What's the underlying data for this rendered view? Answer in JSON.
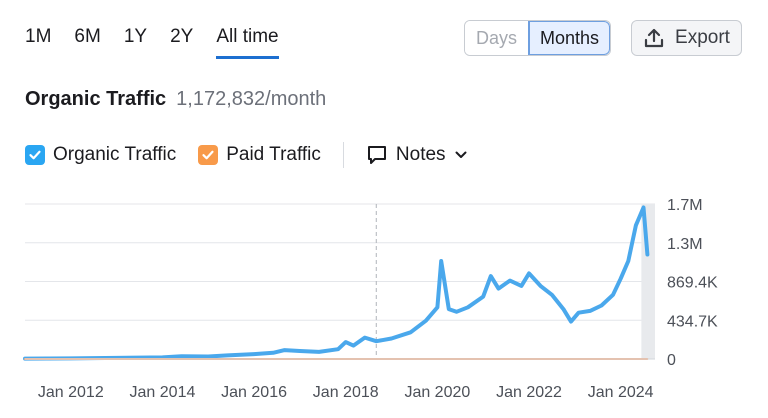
{
  "range_tabs": [
    {
      "label": "1M",
      "active": false
    },
    {
      "label": "6M",
      "active": false
    },
    {
      "label": "1Y",
      "active": false
    },
    {
      "label": "2Y",
      "active": false
    },
    {
      "label": "All time",
      "active": true
    }
  ],
  "granularity": {
    "days_label": "Days",
    "months_label": "Months",
    "selected": "Months"
  },
  "export_label": "Export",
  "header": {
    "title": "Organic Traffic",
    "subtitle": "1,172,832/month"
  },
  "legend": {
    "organic_label": "Organic Traffic",
    "organic_color": "#2aa6f2",
    "paid_label": "Paid Traffic",
    "paid_color": "#f89a4a",
    "notes_label": "Notes"
  },
  "chart_data": {
    "type": "line",
    "x_tick_labels": [
      "Jan 2012",
      "Jan 2014",
      "Jan 2016",
      "Jan 2018",
      "Jan 2020",
      "Jan 2022",
      "Jan 2024"
    ],
    "y_tick_labels": [
      "1.7M",
      "1.3M",
      "869.4K",
      "434.7K",
      "0"
    ],
    "ylim": [
      0,
      1739000
    ],
    "xlim": [
      "2011-01",
      "2024-10"
    ],
    "grid": true,
    "marker_date": "2018-09",
    "series": [
      {
        "name": "Organic Traffic",
        "color": "#4aa8ec",
        "points": [
          [
            "2011-01",
            5000
          ],
          [
            "2012-01",
            7000
          ],
          [
            "2013-01",
            12000
          ],
          [
            "2014-01",
            18000
          ],
          [
            "2014-06",
            30000
          ],
          [
            "2015-01",
            28000
          ],
          [
            "2015-06",
            40000
          ],
          [
            "2016-01",
            55000
          ],
          [
            "2016-06",
            70000
          ],
          [
            "2016-09",
            100000
          ],
          [
            "2017-01",
            90000
          ],
          [
            "2017-06",
            80000
          ],
          [
            "2017-11",
            110000
          ],
          [
            "2018-01",
            190000
          ],
          [
            "2018-03",
            150000
          ],
          [
            "2018-06",
            240000
          ],
          [
            "2018-09",
            200000
          ],
          [
            "2019-01",
            230000
          ],
          [
            "2019-06",
            300000
          ],
          [
            "2019-10",
            430000
          ],
          [
            "2020-01",
            580000
          ],
          [
            "2020-02",
            1100000
          ],
          [
            "2020-04",
            560000
          ],
          [
            "2020-06",
            530000
          ],
          [
            "2020-09",
            580000
          ],
          [
            "2021-01",
            700000
          ],
          [
            "2021-03",
            930000
          ],
          [
            "2021-05",
            790000
          ],
          [
            "2021-08",
            880000
          ],
          [
            "2021-11",
            820000
          ],
          [
            "2022-01",
            960000
          ],
          [
            "2022-04",
            820000
          ],
          [
            "2022-07",
            720000
          ],
          [
            "2022-10",
            560000
          ],
          [
            "2022-12",
            420000
          ],
          [
            "2023-02",
            520000
          ],
          [
            "2023-05",
            540000
          ],
          [
            "2023-08",
            600000
          ],
          [
            "2023-11",
            720000
          ],
          [
            "2024-01",
            900000
          ],
          [
            "2024-03",
            1100000
          ],
          [
            "2024-05",
            1500000
          ],
          [
            "2024-07",
            1700000
          ],
          [
            "2024-08",
            1172832
          ]
        ]
      },
      {
        "name": "Paid Traffic",
        "color": "#f5b087",
        "points": [
          [
            "2011-01",
            0
          ],
          [
            "2024-08",
            0
          ]
        ]
      }
    ]
  }
}
